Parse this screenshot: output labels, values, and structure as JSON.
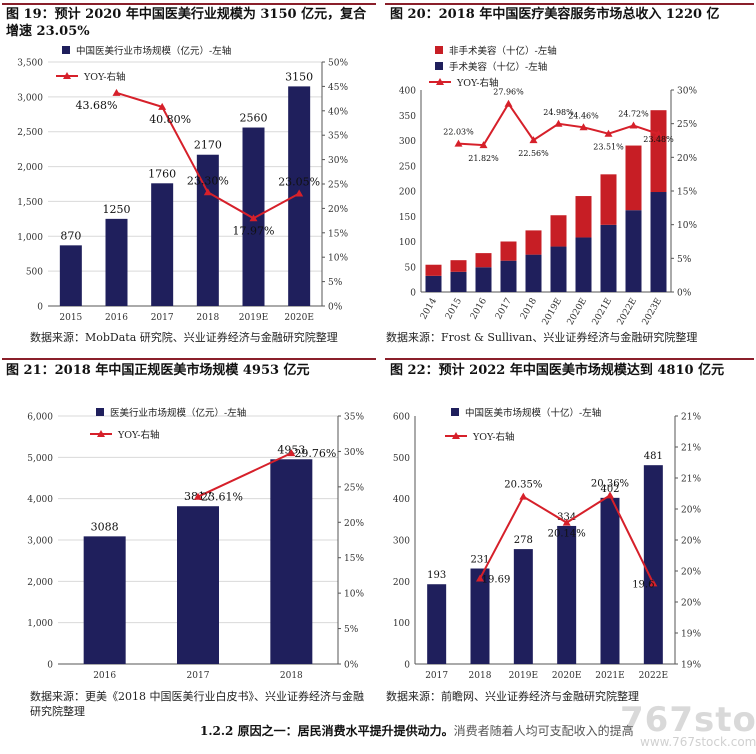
{
  "panels": [
    {
      "title": "图 19：预计 2020 年中国医美行业规模为 3150 亿元，复合增速 23.05%",
      "source": "数据来源：MobData 研究院、兴业证券经济与金融研究院整理"
    },
    {
      "title": "图 20：2018 年中国医疗美容服务市场总收入 1220 亿",
      "source": "数据来源：Frost & Sullivan、兴业证券经济与金融研究院整理"
    },
    {
      "title": "图 21：2018 年中国正规医美市场规模 4953 亿元",
      "source": "数据来源：更美《2018 中国医美行业白皮书》、兴业证券经济与金融研究院整理"
    },
    {
      "title": "图 22：预计 2022 年中国医美市场规模达到 4810 亿元",
      "source": "数据来源：前瞻网、兴业证券经济与金融研究院整理"
    }
  ],
  "footer": {
    "heading": "1.2.2 原因之一：居民消费水平提升提供动力。",
    "rest": "消费者随着人均可支配收入的提高"
  },
  "watermark": {
    "text": "767stock.com",
    "subtext": "www.767stock.com"
  },
  "colors": {
    "bar": "#1f1f5c",
    "line": "#d6202a",
    "rule": "#8a1f2a"
  },
  "chart_data": [
    {
      "type": "bar",
      "categories": [
        "2015",
        "2016",
        "2017",
        "2018",
        "2019E",
        "2020E"
      ],
      "series": [
        {
          "name": "中国医美行业市场规模（亿元）-左轴",
          "values": [
            870,
            1250,
            1760,
            2170,
            2560,
            3150
          ],
          "labels": [
            "870",
            "1250",
            "1760",
            "2170",
            "2560",
            "3150"
          ]
        },
        {
          "name": "YOY-右轴",
          "type": "line",
          "axis": "right",
          "values": [
            null,
            43.68,
            40.8,
            23.3,
            17.97,
            23.05
          ],
          "labels": [
            "",
            "43.68%",
            "40.80%",
            "23.30%",
            "17.97%",
            "23.05%"
          ]
        }
      ],
      "yleft": {
        "min": 0,
        "max": 3500,
        "step": 500,
        "ticks": [
          "0",
          "500",
          "1,000",
          "1,500",
          "2,000",
          "2,500",
          "3,000",
          "3,500"
        ]
      },
      "yright": {
        "min": 0,
        "max": 50,
        "step": 5,
        "ticks": [
          "0%",
          "5%",
          "10%",
          "15%",
          "20%",
          "25%",
          "30%",
          "35%",
          "40%",
          "45%",
          "50%"
        ]
      },
      "legend": "top-left",
      "grid": true
    },
    {
      "type": "stacked-bar",
      "categories": [
        "2014",
        "2015",
        "2016",
        "2017",
        "2018",
        "2019E",
        "2020E",
        "2021E",
        "2022E",
        "2023E"
      ],
      "series": [
        {
          "name": "非手术美容（十亿）-左轴",
          "values": [
            22,
            23,
            28,
            38,
            48,
            62,
            82,
            100,
            128,
            162
          ]
        },
        {
          "name": "手术美容（十亿）-左轴",
          "values": [
            32,
            40,
            49,
            62,
            74,
            90,
            108,
            133,
            162,
            198
          ]
        },
        {
          "name": "YOY-右轴",
          "type": "line",
          "axis": "right",
          "values": [
            null,
            22.03,
            21.82,
            27.96,
            22.56,
            24.98,
            24.46,
            23.51,
            24.72,
            23.48
          ],
          "labels": [
            "",
            "22.03%",
            "21.82%",
            "27.96%",
            "22.56%",
            "24.98%",
            "24.46%",
            "23.51%",
            "24.72%",
            "23.48%"
          ]
        }
      ],
      "yleft": {
        "min": 0,
        "max": 400,
        "step": 50,
        "ticks": [
          "0",
          "50",
          "100",
          "150",
          "200",
          "250",
          "300",
          "350",
          "400"
        ]
      },
      "yright": {
        "min": 0,
        "max": 30,
        "step": 5,
        "ticks": [
          "0%",
          "5%",
          "10%",
          "15%",
          "20%",
          "25%",
          "30%"
        ]
      },
      "legend": "top-left",
      "grid": false
    },
    {
      "type": "bar",
      "categories": [
        "2016",
        "2017",
        "2018"
      ],
      "series": [
        {
          "name": "医美行业市场规模（亿元）-左轴",
          "values": [
            3088,
            3817,
            4953
          ],
          "labels": [
            "3088",
            "3817",
            "4953"
          ]
        },
        {
          "name": "YOY-右轴",
          "type": "line",
          "axis": "right",
          "values": [
            null,
            23.61,
            29.76
          ],
          "labels": [
            "",
            "23.61%",
            "29.76%"
          ]
        }
      ],
      "yleft": {
        "min": 0,
        "max": 6000,
        "step": 1000,
        "ticks": [
          "0",
          "1,000",
          "2,000",
          "3,000",
          "4,000",
          "5,000",
          "6,000"
        ]
      },
      "yright": {
        "min": 0,
        "max": 35,
        "step": 5,
        "ticks": [
          "0%",
          "5%",
          "10%",
          "15%",
          "20%",
          "25%",
          "30%",
          "35%"
        ]
      },
      "legend": "top-left",
      "grid": true
    },
    {
      "type": "bar",
      "categories": [
        "2017",
        "2018",
        "2019E",
        "2020E",
        "2021E",
        "2022E"
      ],
      "series": [
        {
          "name": "中国医美市场规模（十亿）-左轴",
          "values": [
            193,
            231,
            278,
            334,
            402,
            481
          ],
          "labels": [
            "193",
            "231",
            "278",
            "334",
            "402",
            "481"
          ]
        },
        {
          "name": "YOY-右轴",
          "type": "line",
          "axis": "right",
          "values": [
            null,
            19.69,
            20.35,
            20.14,
            20.36,
            19.65
          ],
          "labels": [
            "",
            "19.69",
            "20.35%",
            "20.14%",
            "20.36%",
            "19.6"
          ]
        }
      ],
      "yleft": {
        "min": 0,
        "max": 600,
        "step": 100,
        "ticks": [
          "0",
          "100",
          "200",
          "300",
          "400",
          "500",
          "600"
        ]
      },
      "yright": {
        "min": 19,
        "max": 21,
        "step": 0.25,
        "ticks": [
          "19%",
          "19%",
          "20%",
          "20%",
          "20%",
          "20%",
          "21%",
          "21%",
          "21%"
        ]
      },
      "legend": "top-left",
      "grid": false
    }
  ]
}
